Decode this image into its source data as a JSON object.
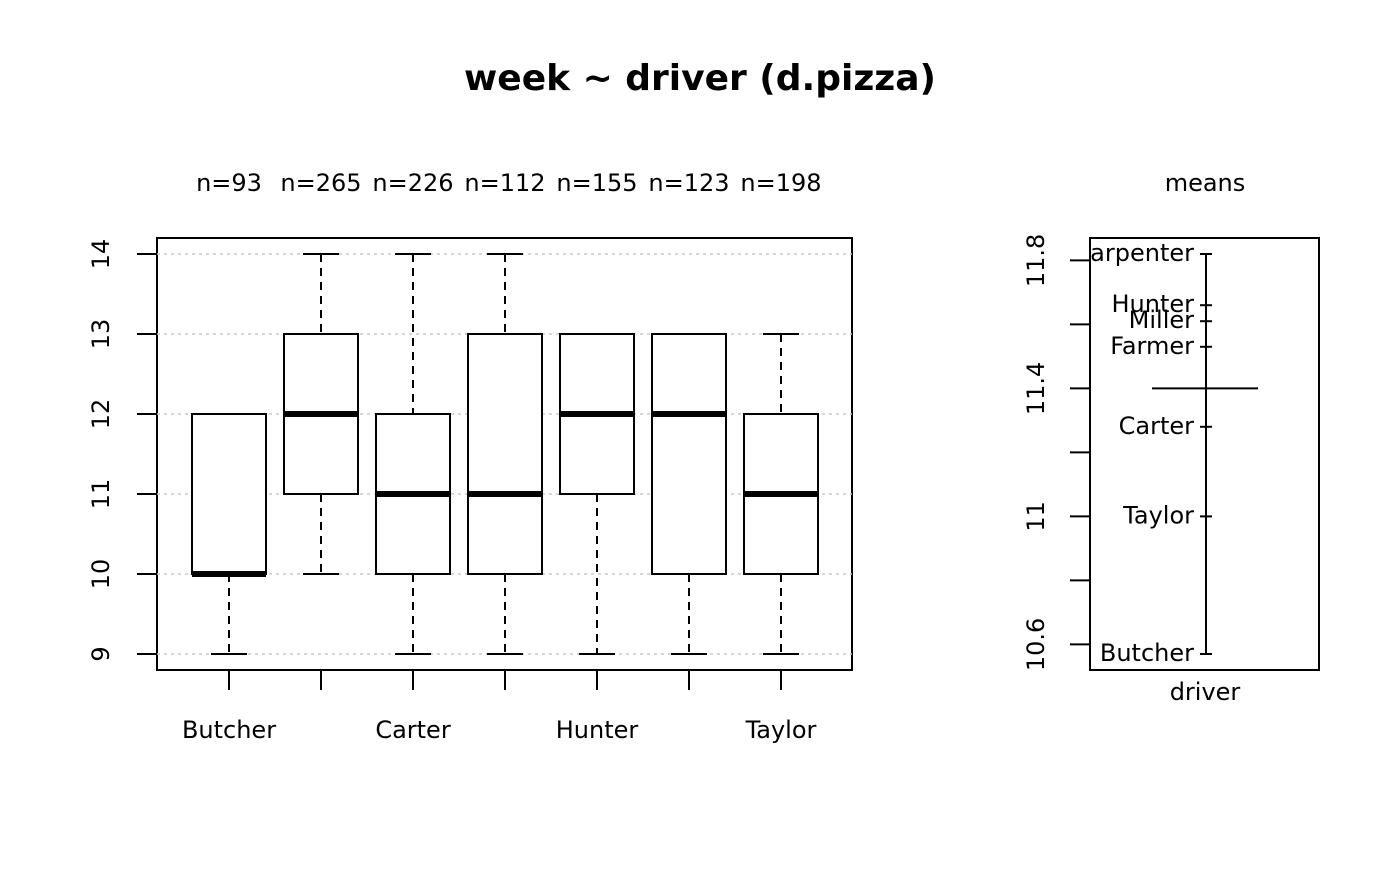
{
  "chart_data": [
    {
      "type": "boxplot",
      "title": "week ~ driver (d.pizza)",
      "categories": [
        "Butcher",
        null,
        "Carter",
        null,
        "Hunter",
        null,
        "Taylor"
      ],
      "n_labels": [
        "n=93",
        "n=265",
        "n=226",
        "n=112",
        "n=155",
        "n=123",
        "n=198"
      ],
      "boxes": [
        {
          "min": 9,
          "q1": 10,
          "median": 10,
          "q3": 12,
          "max": 12
        },
        {
          "min": 10,
          "q1": 11,
          "median": 12,
          "q3": 13,
          "max": 14
        },
        {
          "min": 9,
          "q1": 10,
          "median": 11,
          "q3": 12,
          "max": 14
        },
        {
          "min": 9,
          "q1": 10,
          "median": 11,
          "q3": 13,
          "max": 14
        },
        {
          "min": 9,
          "q1": 11,
          "median": 12,
          "q3": 13,
          "max": 13
        },
        {
          "min": 9,
          "q1": 10,
          "median": 12,
          "q3": 13,
          "max": 13
        },
        {
          "min": 9,
          "q1": 10,
          "median": 11,
          "q3": 12,
          "max": 13
        }
      ],
      "color": "#000000",
      "ylim": [
        8.8,
        14.2
      ],
      "yticks": [
        9,
        10,
        11,
        12,
        13,
        14
      ],
      "grid": true,
      "grid_color": "#c8c8c8"
    },
    {
      "type": "means",
      "title": "means",
      "xlabel": "driver",
      "categories": [
        "Carpenter",
        "Hunter",
        "Miller",
        "Farmer",
        "Carter",
        "Taylor",
        "Butcher"
      ],
      "values": [
        11.82,
        11.66,
        11.61,
        11.53,
        11.28,
        11.0,
        10.57
      ],
      "grand_mean": 11.4,
      "color": "#000000",
      "ylim": [
        10.52,
        11.87
      ],
      "yticks": [
        10.6,
        11.0,
        11.4,
        11.8
      ],
      "yminor_ticks": [
        10.8,
        11.2,
        11.6
      ]
    }
  ]
}
